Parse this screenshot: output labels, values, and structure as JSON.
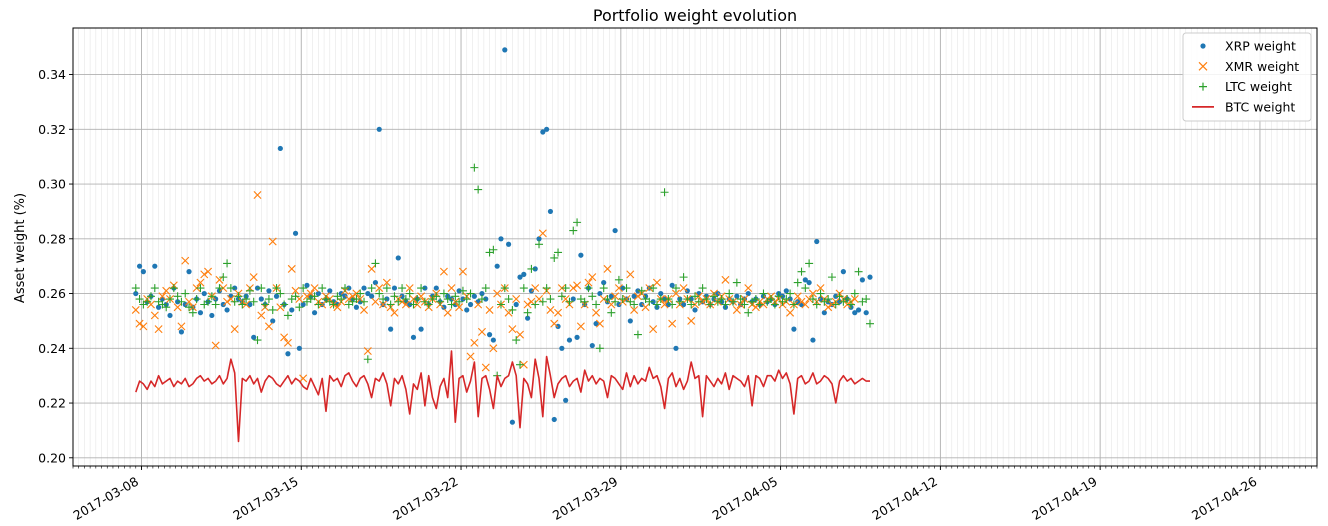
{
  "chart_data": {
    "type": "line",
    "title": "Portfolio weight evolution",
    "xlabel": "",
    "ylabel": "Asset weight (%)",
    "x_start": "2017-03-07T18:00",
    "x_end": "2017-04-26T12:00",
    "points_per_day": 6,
    "xlim": [
      "2017-03-05T00:00",
      "2017-04-28T12:00"
    ],
    "ylim": [
      0.197,
      0.357
    ],
    "y_ticks": [
      0.2,
      0.22,
      0.24,
      0.26,
      0.28,
      0.3,
      0.32,
      0.34
    ],
    "y_tick_labels": [
      "0.20",
      "0.22",
      "0.24",
      "0.26",
      "0.28",
      "0.30",
      "0.32",
      "0.34"
    ],
    "x_ticks": [
      "2017-03-08",
      "2017-03-15",
      "2017-03-22",
      "2017-03-29",
      "2017-04-05",
      "2017-04-12",
      "2017-04-19",
      "2017-04-26"
    ],
    "x_tick_labels": [
      "2017-03-08",
      "2017-03-15",
      "2017-03-22",
      "2017-03-29",
      "2017-04-05",
      "2017-04-12",
      "2017-04-19",
      "2017-04-26"
    ],
    "grid": true,
    "legend_position": "upper right",
    "series": [
      {
        "name": "XRP weight",
        "marker": "dot",
        "color": "#1f77b4",
        "values": [
          0.26,
          0.27,
          0.268,
          0.257,
          0.259,
          0.27,
          0.255,
          0.258,
          0.256,
          0.252,
          0.262,
          0.257,
          0.246,
          0.256,
          0.268,
          0.255,
          0.258,
          0.253,
          0.26,
          0.257,
          0.252,
          0.258,
          0.261,
          0.256,
          0.254,
          0.259,
          0.262,
          0.258,
          0.257,
          0.259,
          0.256,
          0.244,
          0.262,
          0.258,
          0.256,
          0.261,
          0.25,
          0.259,
          0.313,
          0.256,
          0.238,
          0.254,
          0.282,
          0.24,
          0.256,
          0.263,
          0.259,
          0.253,
          0.26,
          0.256,
          0.258,
          0.261,
          0.257,
          0.256,
          0.26,
          0.259,
          0.262,
          0.258,
          0.255,
          0.257,
          0.262,
          0.26,
          0.259,
          0.264,
          0.32,
          0.256,
          0.258,
          0.247,
          0.262,
          0.273,
          0.259,
          0.257,
          0.256,
          0.244,
          0.258,
          0.247,
          0.262,
          0.256,
          0.259,
          0.262,
          0.257,
          0.255,
          0.259,
          0.258,
          0.256,
          0.261,
          0.258,
          0.254,
          0.256,
          0.259,
          0.257,
          0.26,
          0.258,
          0.245,
          0.243,
          0.27,
          0.28,
          0.349,
          0.278,
          0.213,
          0.256,
          0.266,
          0.267,
          0.251,
          0.261,
          0.269,
          0.28,
          0.319,
          0.32,
          0.29,
          0.214,
          0.248,
          0.24,
          0.221,
          0.243,
          0.258,
          0.244,
          0.274,
          0.256,
          0.262,
          0.241,
          0.249,
          0.26,
          0.264,
          0.257,
          0.259,
          0.283,
          0.256,
          0.262,
          0.258,
          0.25,
          0.259,
          0.261,
          0.256,
          0.259,
          0.262,
          0.257,
          0.255,
          0.26,
          0.258,
          0.256,
          0.263,
          0.24,
          0.258,
          0.256,
          0.261,
          0.258,
          0.254,
          0.26,
          0.257,
          0.259,
          0.256,
          0.258,
          0.26,
          0.257,
          0.255,
          0.258,
          0.257,
          0.259,
          0.256,
          0.258,
          0.26,
          0.257,
          0.258,
          0.256,
          0.259,
          0.257,
          0.258,
          0.256,
          0.26,
          0.259,
          0.261,
          0.258,
          0.247,
          0.257,
          0.256,
          0.265,
          0.264,
          0.243,
          0.279,
          0.258,
          0.253,
          0.257,
          0.256,
          0.259,
          0.257,
          0.268,
          0.258,
          0.255,
          0.253,
          0.254,
          0.265,
          0.253,
          0.266
        ]
      },
      {
        "name": "XMR weight",
        "marker": "x",
        "color": "#ff7f0e",
        "values": [
          0.254,
          0.249,
          0.248,
          0.258,
          0.256,
          0.252,
          0.247,
          0.259,
          0.261,
          0.258,
          0.263,
          0.255,
          0.248,
          0.272,
          0.257,
          0.255,
          0.262,
          0.264,
          0.267,
          0.268,
          0.259,
          0.241,
          0.265,
          0.262,
          0.257,
          0.258,
          0.247,
          0.26,
          0.257,
          0.256,
          0.262,
          0.266,
          0.296,
          0.252,
          0.255,
          0.248,
          0.279,
          0.262,
          0.255,
          0.244,
          0.242,
          0.269,
          0.261,
          0.258,
          0.229,
          0.259,
          0.26,
          0.262,
          0.257,
          0.256,
          0.259,
          0.258,
          0.256,
          0.255,
          0.257,
          0.261,
          0.258,
          0.259,
          0.26,
          0.258,
          0.254,
          0.239,
          0.269,
          0.257,
          0.262,
          0.256,
          0.264,
          0.255,
          0.253,
          0.258,
          0.257,
          0.256,
          0.262,
          0.258,
          0.256,
          0.259,
          0.257,
          0.255,
          0.258,
          0.26,
          0.256,
          0.268,
          0.253,
          0.262,
          0.257,
          0.255,
          0.268,
          0.259,
          0.237,
          0.242,
          0.256,
          0.246,
          0.233,
          0.254,
          0.24,
          0.26,
          0.256,
          0.262,
          0.253,
          0.247,
          0.258,
          0.245,
          0.234,
          0.256,
          0.257,
          0.262,
          0.258,
          0.282,
          0.261,
          0.254,
          0.249,
          0.253,
          0.262,
          0.258,
          0.256,
          0.262,
          0.263,
          0.248,
          0.256,
          0.264,
          0.266,
          0.253,
          0.249,
          0.258,
          0.269,
          0.256,
          0.259,
          0.262,
          0.257,
          0.258,
          0.267,
          0.254,
          0.259,
          0.26,
          0.255,
          0.262,
          0.247,
          0.264,
          0.258,
          0.256,
          0.258,
          0.249,
          0.26,
          0.256,
          0.262,
          0.258,
          0.25,
          0.256,
          0.259,
          0.257,
          0.258,
          0.256,
          0.26,
          0.257,
          0.259,
          0.265,
          0.258,
          0.257,
          0.254,
          0.256,
          0.258,
          0.262,
          0.256,
          0.255,
          0.257,
          0.256,
          0.258,
          0.259,
          0.257,
          0.258,
          0.256,
          0.257,
          0.253,
          0.256,
          0.259,
          0.257,
          0.256,
          0.258,
          0.26,
          0.257,
          0.262,
          0.258,
          0.255,
          0.256,
          0.257,
          0.26,
          0.258,
          0.256,
          0.257,
          0.258
        ]
      },
      {
        "name": "LTC weight",
        "marker": "plus",
        "color": "#2ca02c",
        "values": [
          0.262,
          0.258,
          0.256,
          0.257,
          0.259,
          0.262,
          0.257,
          0.256,
          0.255,
          0.258,
          0.262,
          0.259,
          0.257,
          0.26,
          0.255,
          0.253,
          0.258,
          0.262,
          0.256,
          0.257,
          0.259,
          0.256,
          0.262,
          0.266,
          0.271,
          0.262,
          0.257,
          0.259,
          0.256,
          0.258,
          0.261,
          0.257,
          0.243,
          0.262,
          0.256,
          0.258,
          0.254,
          0.262,
          0.26,
          0.256,
          0.252,
          0.258,
          0.259,
          0.255,
          0.262,
          0.257,
          0.258,
          0.259,
          0.256,
          0.262,
          0.258,
          0.257,
          0.256,
          0.259,
          0.258,
          0.262,
          0.256,
          0.257,
          0.258,
          0.26,
          0.257,
          0.236,
          0.262,
          0.271,
          0.26,
          0.258,
          0.262,
          0.256,
          0.259,
          0.257,
          0.262,
          0.258,
          0.26,
          0.256,
          0.258,
          0.262,
          0.257,
          0.256,
          0.258,
          0.259,
          0.257,
          0.26,
          0.258,
          0.256,
          0.259,
          0.257,
          0.261,
          0.258,
          0.26,
          0.306,
          0.298,
          0.258,
          0.262,
          0.275,
          0.276,
          0.23,
          0.256,
          0.262,
          0.258,
          0.254,
          0.243,
          0.234,
          0.262,
          0.253,
          0.269,
          0.256,
          0.278,
          0.257,
          0.262,
          0.258,
          0.273,
          0.275,
          0.259,
          0.262,
          0.257,
          0.283,
          0.286,
          0.258,
          0.257,
          0.262,
          0.259,
          0.256,
          0.24,
          0.262,
          0.258,
          0.253,
          0.257,
          0.265,
          0.258,
          0.262,
          0.257,
          0.256,
          0.245,
          0.261,
          0.258,
          0.257,
          0.262,
          0.256,
          0.258,
          0.297,
          0.258,
          0.256,
          0.262,
          0.257,
          0.266,
          0.258,
          0.256,
          0.259,
          0.257,
          0.262,
          0.258,
          0.256,
          0.259,
          0.257,
          0.258,
          0.256,
          0.26,
          0.257,
          0.264,
          0.258,
          0.256,
          0.253,
          0.257,
          0.258,
          0.256,
          0.26,
          0.257,
          0.258,
          0.256,
          0.259,
          0.257,
          0.258,
          0.26,
          0.256,
          0.264,
          0.268,
          0.262,
          0.271,
          0.258,
          0.256,
          0.26,
          0.257,
          0.258,
          0.266,
          0.256,
          0.259,
          0.257,
          0.258,
          0.256,
          0.26,
          0.268,
          0.257,
          0.258,
          0.249
        ]
      },
      {
        "name": "BTC weight",
        "marker": "line",
        "color": "#d62728",
        "values": [
          0.224,
          0.228,
          0.227,
          0.225,
          0.228,
          0.226,
          0.23,
          0.227,
          0.228,
          0.229,
          0.226,
          0.228,
          0.227,
          0.229,
          0.226,
          0.227,
          0.229,
          0.23,
          0.228,
          0.229,
          0.227,
          0.228,
          0.23,
          0.227,
          0.229,
          0.236,
          0.231,
          0.206,
          0.229,
          0.228,
          0.23,
          0.227,
          0.229,
          0.224,
          0.228,
          0.23,
          0.229,
          0.227,
          0.226,
          0.228,
          0.23,
          0.227,
          0.229,
          0.228,
          0.226,
          0.225,
          0.229,
          0.226,
          0.223,
          0.229,
          0.217,
          0.23,
          0.228,
          0.229,
          0.226,
          0.23,
          0.231,
          0.228,
          0.226,
          0.229,
          0.23,
          0.227,
          0.222,
          0.229,
          0.228,
          0.231,
          0.227,
          0.219,
          0.229,
          0.227,
          0.23,
          0.225,
          0.216,
          0.227,
          0.225,
          0.231,
          0.219,
          0.23,
          0.222,
          0.218,
          0.226,
          0.229,
          0.222,
          0.239,
          0.213,
          0.229,
          0.23,
          0.224,
          0.228,
          0.235,
          0.215,
          0.229,
          0.23,
          0.225,
          0.218,
          0.23,
          0.226,
          0.229,
          0.23,
          0.235,
          0.23,
          0.211,
          0.229,
          0.227,
          0.222,
          0.236,
          0.229,
          0.215,
          0.237,
          0.23,
          0.222,
          0.227,
          0.229,
          0.23,
          0.226,
          0.228,
          0.229,
          0.224,
          0.232,
          0.228,
          0.23,
          0.227,
          0.229,
          0.228,
          0.222,
          0.23,
          0.229,
          0.227,
          0.225,
          0.231,
          0.226,
          0.23,
          0.227,
          0.229,
          0.228,
          0.233,
          0.229,
          0.23,
          0.226,
          0.218,
          0.229,
          0.231,
          0.226,
          0.229,
          0.225,
          0.228,
          0.235,
          0.229,
          0.23,
          0.215,
          0.23,
          0.228,
          0.226,
          0.229,
          0.227,
          0.231,
          0.225,
          0.23,
          0.229,
          0.228,
          0.226,
          0.23,
          0.219,
          0.23,
          0.229,
          0.226,
          0.23,
          0.23,
          0.228,
          0.232,
          0.229,
          0.231,
          0.227,
          0.216,
          0.229,
          0.23,
          0.227,
          0.228,
          0.231,
          0.227,
          0.228,
          0.23,
          0.229,
          0.227,
          0.22,
          0.228,
          0.23,
          0.228,
          0.229,
          0.227,
          0.228,
          0.229,
          0.228,
          0.228
        ]
      }
    ]
  },
  "colors": {
    "grid_major": "#b0b0b0",
    "grid_minor": "#e6e6e6",
    "axis": "#000000"
  }
}
